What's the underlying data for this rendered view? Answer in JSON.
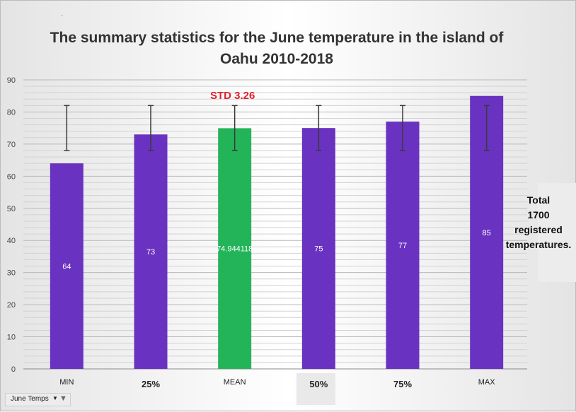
{
  "chart_data": {
    "type": "bar",
    "title": "The summary statistics for the June temperature in the island of Oahu 2010-2018",
    "categories": [
      "MIN",
      "25%",
      "MEAN",
      "50%",
      "75%",
      "MAX"
    ],
    "values": [
      64,
      73,
      74.944118,
      75,
      77,
      85
    ],
    "value_labels": [
      "64",
      "73",
      "74.944118",
      "75",
      "77",
      "85"
    ],
    "error_bars": [
      {
        "low": 68,
        "high": 82
      },
      {
        "low": 68,
        "high": 82
      },
      {
        "low": 68,
        "high": 82
      },
      {
        "low": 68,
        "high": 82
      },
      {
        "low": 68,
        "high": 82
      },
      {
        "low": 68,
        "high": 82
      }
    ],
    "bar_colors": [
      "#6a32c0",
      "#6a32c0",
      "#23b45a",
      "#6a32c0",
      "#6a32c0",
      "#6a32c0"
    ],
    "ylim": [
      0,
      90
    ],
    "yticks": [
      0,
      10,
      20,
      30,
      40,
      50,
      60,
      70,
      80,
      90
    ],
    "grid": true,
    "legend": "none",
    "xlabel": "",
    "ylabel": ""
  },
  "annotations": {
    "std": "STD 3.26",
    "note_lines": [
      "Total",
      "1700",
      "registered",
      "temperatures."
    ]
  },
  "filter_button": {
    "label": "June Temps",
    "arrow": "▼",
    "icon": "funnel-icon"
  },
  "colors": {
    "bar": "#6a32c0",
    "mean_bar": "#23b45a",
    "std_text": "#e0202a",
    "error_bar": "#3a3a3a"
  }
}
